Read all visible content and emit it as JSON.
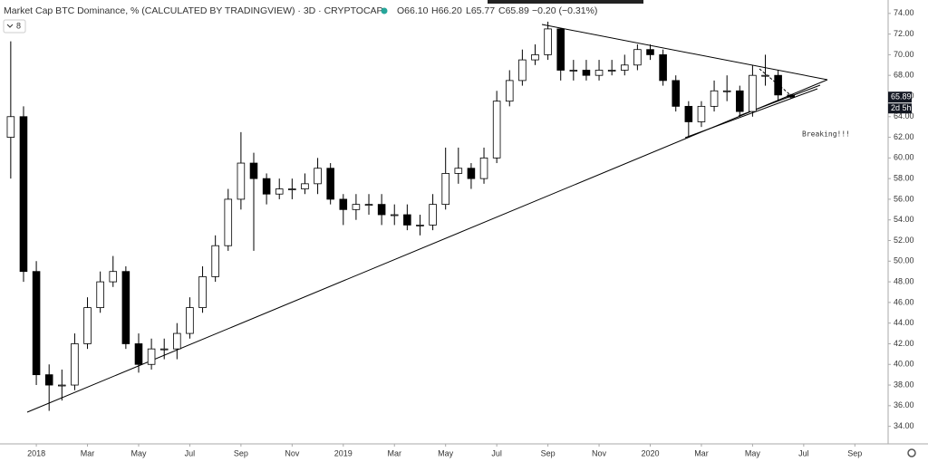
{
  "chart_data": {
    "type": "candlestick",
    "title": "Market Cap BTC Dominance, % (CALCULATED BY TRADINGVIEW) · 3D · CRYPTOCAP",
    "indicator_badge": "8",
    "ohlc_text": {
      "open": "O66.10",
      "high": "H66.20",
      "low": "L65.77",
      "close": "C65.89",
      "change": "−0.20 (−0.31%)"
    },
    "annotation": "Breaking!!!",
    "countdown": "2d 5h",
    "up_color": "#ffffff",
    "down_color": "#000000",
    "wick_color": "#000000",
    "x": [
      -1,
      -0.5,
      0,
      0.5,
      1,
      1.5,
      2,
      2.5,
      3,
      3.5,
      4,
      4.5,
      5,
      5.5,
      6,
      6.5,
      7,
      7.5,
      8,
      8.5,
      9,
      9.5,
      10,
      10.5,
      11,
      11.5,
      12,
      12.5,
      13,
      13.5,
      14,
      14.5,
      15,
      15.5,
      16,
      16.5,
      17,
      17.5,
      18,
      18.5,
      19,
      19.5,
      20,
      20.5,
      21,
      21.5,
      22,
      22.5,
      23,
      23.5,
      24,
      24.5,
      25,
      25.5,
      26,
      26.5,
      27,
      27.5,
      28,
      28.5,
      29,
      29.5
    ],
    "open": [
      62,
      64,
      49,
      39,
      38,
      38,
      42,
      45.5,
      48,
      49,
      42,
      40,
      41.5,
      41.5,
      43,
      45.5,
      48.5,
      51.5,
      56,
      59.5,
      58,
      56.5,
      57,
      57,
      57.5,
      59,
      56,
      55,
      55.5,
      55.5,
      54.5,
      54.5,
      53.5,
      53.5,
      55.5,
      58.5,
      59,
      58,
      60,
      65.5,
      67.5,
      69.5,
      70,
      72.5,
      68.5,
      68.5,
      68,
      68.5,
      68.5,
      69,
      70.5,
      70,
      67.5,
      65,
      63.5,
      65,
      66.5,
      66.5,
      64.5,
      68,
      68,
      66.1
    ],
    "high": [
      71.3,
      65,
      50,
      40,
      39.5,
      43,
      46.5,
      49,
      50.5,
      49.5,
      43,
      42.5,
      42.5,
      44,
      46.5,
      49.5,
      52.5,
      57,
      62.5,
      60.5,
      58.5,
      58,
      58,
      58.5,
      60,
      59.5,
      56.5,
      56.5,
      56.5,
      56.5,
      55.5,
      55.5,
      54.5,
      56.5,
      61,
      61,
      59.5,
      61,
      66.5,
      68.5,
      70.5,
      71,
      73.2,
      72.5,
      69.5,
      69.5,
      69.5,
      69.5,
      70,
      71,
      71,
      70.5,
      68,
      65.5,
      65.5,
      67.5,
      68,
      67,
      69,
      70,
      68.5,
      66.2
    ],
    "low": [
      58,
      48,
      38,
      35.5,
      36.5,
      37.5,
      41.5,
      45,
      47.5,
      41.5,
      39.2,
      39.5,
      40.5,
      40.5,
      42.5,
      45,
      48,
      51,
      55,
      51,
      55.5,
      56,
      56,
      56.5,
      56.5,
      55.5,
      53.5,
      54,
      54.5,
      53.5,
      53.5,
      53,
      52.5,
      53,
      55,
      57.5,
      57,
      57.5,
      59.5,
      65,
      67,
      69,
      69.5,
      67.5,
      67.5,
      67.5,
      67.5,
      68,
      68,
      68.5,
      69.5,
      67,
      64.5,
      62,
      63,
      64.5,
      65.5,
      64,
      64,
      67,
      65.5,
      65.77
    ],
    "close": [
      64,
      49,
      39,
      38,
      38,
      42,
      45.5,
      48,
      49,
      42,
      40,
      41.5,
      41.5,
      43,
      45.5,
      48.5,
      51.5,
      56,
      59.5,
      58,
      56.5,
      57,
      57,
      57.5,
      59,
      56,
      55,
      55.5,
      55.5,
      54.5,
      54.5,
      53.5,
      53.5,
      55.5,
      58.5,
      59,
      58,
      60,
      65.5,
      67.5,
      69.5,
      70,
      72.5,
      68.5,
      68.5,
      68,
      68.5,
      68.5,
      69,
      70.5,
      70,
      67.5,
      65,
      63.5,
      65,
      66.5,
      66.5,
      64.5,
      68,
      68,
      66.1,
      65.89
    ],
    "close_label": "65.89",
    "xlim": [
      -1.42,
      33.3
    ],
    "xticks": [
      {
        "value": 0,
        "label": "2018"
      },
      {
        "value": 2,
        "label": "Mar"
      },
      {
        "value": 4,
        "label": "May"
      },
      {
        "value": 6,
        "label": "Jul"
      },
      {
        "value": 8,
        "label": "Sep"
      },
      {
        "value": 10,
        "label": "Nov"
      },
      {
        "value": 12,
        "label": "2019"
      },
      {
        "value": 14,
        "label": "Mar"
      },
      {
        "value": 16,
        "label": "May"
      },
      {
        "value": 18,
        "label": "Jul"
      },
      {
        "value": 20,
        "label": "Sep"
      },
      {
        "value": 22,
        "label": "Nov"
      },
      {
        "value": 24,
        "label": "2020"
      },
      {
        "value": 26,
        "label": "Mar"
      },
      {
        "value": 28,
        "label": "May"
      },
      {
        "value": 30,
        "label": "Jul"
      },
      {
        "value": 32,
        "label": "Sep"
      }
    ],
    "ylim": [
      32.3,
      75.3
    ],
    "yticks": [
      {
        "value": 34,
        "label": "34.00"
      },
      {
        "value": 36,
        "label": "36.00"
      },
      {
        "value": 38,
        "label": "38.00"
      },
      {
        "value": 40,
        "label": "40.00"
      },
      {
        "value": 42,
        "label": "42.00"
      },
      {
        "value": 44,
        "label": "44.00"
      },
      {
        "value": 46,
        "label": "46.00"
      },
      {
        "value": 48,
        "label": "48.00"
      },
      {
        "value": 50,
        "label": "50.00"
      },
      {
        "value": 52,
        "label": "52.00"
      },
      {
        "value": 54,
        "label": "54.00"
      },
      {
        "value": 56,
        "label": "56.00"
      },
      {
        "value": 58,
        "label": "58.00"
      },
      {
        "value": 60,
        "label": "60.00"
      },
      {
        "value": 62,
        "label": "62.00"
      },
      {
        "value": 64,
        "label": "64.00"
      },
      {
        "value": 66,
        "label": "66.00"
      },
      {
        "value": 68,
        "label": "68.00"
      },
      {
        "value": 70,
        "label": "70.00"
      },
      {
        "value": 72,
        "label": "72.00"
      },
      {
        "value": 74,
        "label": "74.00"
      }
    ],
    "grid": false
  }
}
